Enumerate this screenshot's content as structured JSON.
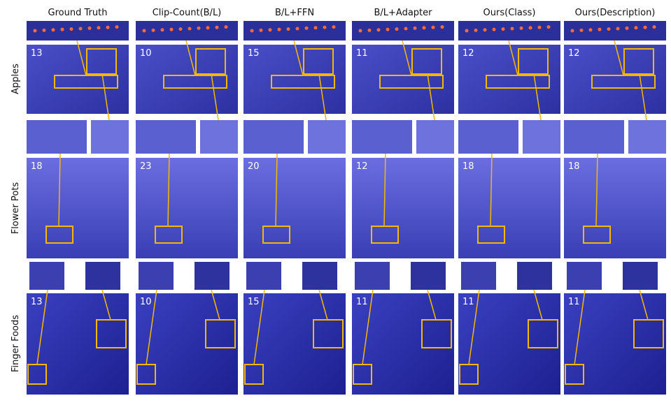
{
  "figure": {
    "columns": [
      "Ground Truth",
      "Clip-Count(B/L)",
      "B/L+FFN",
      "B/L+Adapter",
      "Ours(Class)",
      "Ours(Description)"
    ],
    "rows": [
      {
        "label": "Apples",
        "counts": [
          "13",
          "10",
          "15",
          "11",
          "12",
          "12"
        ]
      },
      {
        "label": "Flower Pots",
        "counts": [
          "18",
          "23",
          "20",
          "12",
          "18",
          "18"
        ]
      },
      {
        "label": "Finger Foods",
        "counts": [
          "13",
          "10",
          "15",
          "11",
          "11",
          "11"
        ]
      }
    ]
  }
}
